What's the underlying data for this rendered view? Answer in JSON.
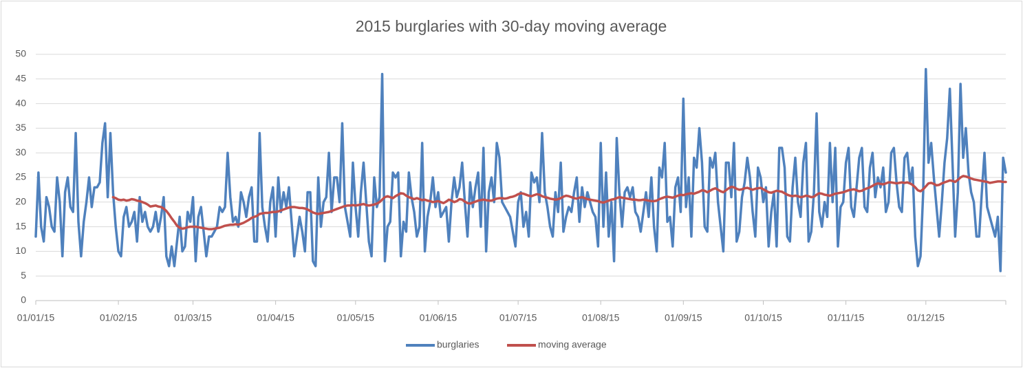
{
  "chart_data": {
    "type": "line",
    "title": "2015 burglaries with 30-day moving average",
    "categories": [
      "01/01/15",
      null,
      null,
      null,
      null,
      null,
      null,
      null,
      null,
      null,
      null,
      null,
      null,
      null,
      null,
      null,
      null,
      null,
      null,
      null,
      null,
      null,
      null,
      null,
      null,
      null,
      null,
      null,
      null,
      null,
      null,
      "01/02/15",
      null,
      null,
      null,
      null,
      null,
      null,
      null,
      null,
      null,
      null,
      null,
      null,
      null,
      null,
      null,
      null,
      null,
      null,
      null,
      null,
      null,
      null,
      null,
      null,
      null,
      null,
      null,
      "01/03/15",
      null,
      null,
      null,
      null,
      null,
      null,
      null,
      null,
      null,
      null,
      null,
      null,
      null,
      null,
      null,
      null,
      null,
      null,
      null,
      null,
      null,
      null,
      null,
      null,
      null,
      null,
      null,
      null,
      null,
      null,
      "01/04/15",
      null,
      null,
      null,
      null,
      null,
      null,
      null,
      null,
      null,
      null,
      null,
      null,
      null,
      null,
      null,
      null,
      null,
      null,
      null,
      null,
      null,
      null,
      null,
      null,
      null,
      null,
      null,
      null,
      null,
      "01/05/15",
      null,
      null,
      null,
      null,
      null,
      null,
      null,
      null,
      null,
      null,
      null,
      null,
      null,
      null,
      null,
      null,
      null,
      null,
      null,
      null,
      null,
      null,
      null,
      null,
      null,
      null,
      null,
      null,
      null,
      null,
      "01/06/15",
      null,
      null,
      null,
      null,
      null,
      null,
      null,
      null,
      null,
      null,
      null,
      null,
      null,
      null,
      null,
      null,
      null,
      null,
      null,
      null,
      null,
      null,
      null,
      null,
      null,
      null,
      null,
      null,
      null,
      "01/07/15",
      null,
      null,
      null,
      null,
      null,
      null,
      null,
      null,
      null,
      null,
      null,
      null,
      null,
      null,
      null,
      null,
      null,
      null,
      null,
      null,
      null,
      null,
      null,
      null,
      null,
      null,
      null,
      null,
      null,
      null,
      "01/08/15",
      null,
      null,
      null,
      null,
      null,
      null,
      null,
      null,
      null,
      null,
      null,
      null,
      null,
      null,
      null,
      null,
      null,
      null,
      null,
      null,
      null,
      null,
      null,
      null,
      null,
      null,
      null,
      null,
      null,
      null,
      "01/09/15",
      null,
      null,
      null,
      null,
      null,
      null,
      null,
      null,
      null,
      null,
      null,
      null,
      null,
      null,
      null,
      null,
      null,
      null,
      null,
      null,
      null,
      null,
      null,
      null,
      null,
      null,
      null,
      null,
      null,
      "01/10/15",
      null,
      null,
      null,
      null,
      null,
      null,
      null,
      null,
      null,
      null,
      null,
      null,
      null,
      null,
      null,
      null,
      null,
      null,
      null,
      null,
      null,
      null,
      null,
      null,
      null,
      null,
      null,
      null,
      null,
      null,
      "01/11/15",
      null,
      null,
      null,
      null,
      null,
      null,
      null,
      null,
      null,
      null,
      null,
      null,
      null,
      null,
      null,
      null,
      null,
      null,
      null,
      null,
      null,
      null,
      null,
      null,
      null,
      null,
      null,
      null,
      null,
      "01/12/15",
      null,
      null,
      null,
      null,
      null,
      null,
      null,
      null,
      null,
      null,
      null,
      null,
      null,
      null,
      null,
      null,
      null,
      null,
      null,
      null,
      null,
      null,
      null,
      null,
      null,
      null,
      null,
      null,
      null,
      null
    ],
    "series": [
      {
        "name": "burglaries",
        "color": "#4f81bd",
        "values": [
          13,
          26,
          15,
          12,
          21,
          19,
          15,
          14,
          25,
          20,
          9,
          22,
          25,
          19,
          18,
          34,
          16,
          9,
          16,
          20,
          25,
          19,
          23,
          23,
          24,
          32,
          36,
          21,
          34,
          22,
          15,
          10,
          9,
          17,
          19,
          15,
          16,
          18,
          12,
          21,
          16,
          18,
          15,
          14,
          15,
          18,
          14,
          17,
          21,
          9,
          7,
          11,
          7,
          12,
          17,
          10,
          11,
          18,
          16,
          21,
          8,
          17,
          19,
          14,
          9,
          13,
          13,
          14,
          15,
          19,
          18,
          19,
          30,
          21,
          16,
          17,
          15,
          22,
          20,
          17,
          21,
          23,
          12,
          12,
          34,
          19,
          15,
          12,
          20,
          23,
          13,
          25,
          18,
          22,
          19,
          23,
          16,
          9,
          13,
          17,
          14,
          10,
          22,
          22,
          8,
          7,
          25,
          15,
          20,
          21,
          30,
          18,
          25,
          25,
          20,
          36,
          19,
          16,
          13,
          28,
          19,
          13,
          22,
          28,
          20,
          12,
          9,
          25,
          19,
          21,
          46,
          8,
          15,
          16,
          26,
          25,
          26,
          9,
          16,
          14,
          26,
          21,
          18,
          13,
          15,
          32,
          10,
          17,
          20,
          25,
          19,
          22,
          17,
          18,
          19,
          12,
          20,
          25,
          21,
          23,
          28,
          20,
          13,
          24,
          19,
          23,
          26,
          15,
          31,
          10,
          22,
          25,
          20,
          32,
          29,
          20,
          19,
          18,
          17,
          14,
          11,
          20,
          22,
          15,
          18,
          13,
          26,
          24,
          25,
          20,
          34,
          22,
          19,
          15,
          13,
          22,
          18,
          28,
          14,
          17,
          19,
          18,
          22,
          25,
          16,
          23,
          19,
          22,
          20,
          18,
          17,
          11,
          32,
          15,
          26,
          13,
          20,
          8,
          33,
          22,
          15,
          22,
          23,
          21,
          23,
          18,
          17,
          14,
          18,
          22,
          17,
          25,
          15,
          10,
          27,
          25,
          32,
          16,
          17,
          11,
          23,
          25,
          18,
          41,
          19,
          25,
          13,
          29,
          27,
          35,
          28,
          15,
          14,
          29,
          27,
          30,
          20,
          15,
          10,
          28,
          28,
          21,
          32,
          12,
          14,
          21,
          24,
          29,
          25,
          18,
          13,
          27,
          25,
          20,
          23,
          11,
          18,
          22,
          11,
          31,
          31,
          27,
          13,
          12,
          23,
          29,
          20,
          17,
          28,
          32,
          12,
          14,
          22,
          38,
          18,
          15,
          20,
          17,
          32,
          20,
          31,
          11,
          19,
          20,
          28,
          31,
          19,
          17,
          23,
          29,
          31,
          19,
          18,
          27,
          30,
          21,
          25,
          23,
          27,
          18,
          20,
          30,
          31,
          24,
          19,
          18,
          29,
          30,
          24,
          27,
          13,
          7,
          9,
          22,
          47,
          28,
          32,
          25,
          19,
          13,
          20,
          28,
          33,
          43,
          28,
          13,
          22,
          44,
          29,
          35,
          26,
          22,
          20,
          13,
          13,
          22,
          30,
          19,
          17,
          15,
          13,
          17,
          6,
          29,
          26
        ]
      },
      {
        "name": "moving average",
        "color": "#c0504d",
        "values": [
          null,
          null,
          null,
          null,
          null,
          null,
          null,
          null,
          null,
          null,
          null,
          null,
          null,
          null,
          null,
          null,
          null,
          null,
          null,
          null,
          null,
          null,
          null,
          null,
          null,
          null,
          null,
          null,
          null,
          21,
          20.8,
          20.5,
          20.4,
          20.5,
          20.3,
          20.4,
          20.6,
          20.5,
          20.3,
          20.2,
          20.0,
          19.8,
          19.5,
          19.1,
          19.2,
          19.3,
          19.1,
          19.0,
          18.7,
          18.2,
          17.5,
          16.7,
          16.0,
          15.2,
          14.8,
          14.6,
          14.7,
          14.9,
          15.0,
          15.0,
          15.0,
          14.9,
          14.8,
          14.7,
          14.6,
          14.5,
          14.5,
          14.6,
          14.7,
          14.8,
          15.0,
          15.2,
          15.3,
          15.4,
          15.4,
          15.5,
          15.4,
          15.6,
          15.8,
          16.1,
          16.4,
          16.8,
          17.0,
          17.2,
          17.6,
          17.7,
          17.8,
          17.8,
          17.9,
          18.0,
          18.0,
          18.1,
          18.3,
          18.5,
          18.7,
          18.9,
          19.0,
          19.0,
          18.9,
          18.8,
          18.8,
          18.7,
          18.5,
          18.2,
          17.9,
          17.7,
          17.6,
          17.7,
          17.8,
          17.9,
          18.0,
          18.2,
          18.4,
          18.6,
          18.8,
          19.0,
          19.2,
          19.3,
          19.3,
          19.4,
          19.3,
          19.4,
          19.5,
          19.6,
          19.4,
          19.3,
          19.4,
          19.5,
          19.7,
          20.0,
          20.5,
          21.0,
          21.2,
          21.0,
          20.8,
          21.2,
          21.5,
          21.8,
          21.7,
          21.3,
          21.0,
          20.8,
          20.6,
          20.8,
          20.6,
          20.4,
          20.5,
          20.3,
          20.2,
          20.0,
          20.1,
          20.2,
          20.0,
          19.8,
          20.1,
          20.5,
          20.3,
          20.0,
          20.2,
          20.6,
          20.5,
          20.1,
          19.8,
          19.7,
          19.9,
          20.1,
          20.3,
          20.4,
          20.5,
          20.4,
          20.3,
          20.3,
          20.5,
          20.7,
          20.8,
          20.8,
          20.7,
          20.8,
          21.0,
          21.1,
          21.3,
          21.6,
          21.8,
          21.7,
          21.5,
          21.3,
          21.2,
          21.4,
          21.6,
          21.5,
          21.2,
          21.0,
          20.9,
          20.7,
          20.6,
          20.5,
          20.6,
          20.8,
          21.1,
          21.3,
          21.2,
          21.0,
          20.8,
          20.7,
          20.9,
          21.0,
          20.8,
          20.6,
          20.5,
          20.4,
          20.3,
          20.2,
          20.0,
          19.9,
          20.1,
          20.3,
          20.5,
          20.6,
          20.8,
          21.0,
          20.9,
          20.8,
          20.7,
          20.6,
          20.5,
          20.5,
          20.4,
          20.4,
          20.5,
          20.4,
          20.3,
          20.2,
          20.2,
          20.3,
          20.6,
          20.8,
          21.0,
          21.1,
          21.0,
          20.9,
          21.1,
          21.3,
          21.5,
          21.4,
          21.6,
          21.7,
          21.8,
          21.7,
          21.9,
          22.1,
          22.4,
          22.3,
          22.0,
          22.3,
          22.6,
          22.8,
          22.5,
          22.2,
          22.0,
          22.4,
          22.8,
          23.1,
          23.0,
          22.7,
          22.5,
          22.6,
          22.8,
          22.9,
          22.7,
          22.5,
          22.7,
          22.8,
          22.9,
          22.6,
          22.3,
          22.0,
          21.9,
          22.1,
          22.3,
          22.2,
          22.1,
          21.8,
          21.5,
          21.3,
          21.2,
          21.3,
          21.2,
          21.0,
          21.1,
          21.3,
          21.2,
          21.0,
          21.1,
          21.5,
          21.8,
          21.7,
          21.5,
          21.4,
          21.3,
          21.5,
          21.7,
          21.8,
          21.9,
          22.0,
          22.2,
          22.4,
          22.5,
          22.6,
          22.4,
          22.2,
          22.3,
          22.6,
          22.8,
          23.0,
          23.3,
          23.6,
          23.8,
          23.7,
          23.6,
          23.8,
          24.0,
          24.0,
          23.9,
          23.8,
          23.9,
          24.0,
          23.9,
          24.0,
          23.8,
          23.5,
          23.0,
          22.4,
          22.2,
          22.6,
          23.2,
          23.8,
          23.9,
          23.7,
          23.4,
          23.5,
          23.8,
          24.0,
          24.2,
          24.4,
          24.3,
          24.1,
          24.5,
          25.0,
          25.3,
          25.2,
          25.0,
          24.8,
          24.6,
          24.5,
          24.4,
          24.3,
          24.2,
          24.1,
          23.9,
          24.0,
          24.1,
          24.2,
          24.2,
          24.1,
          24.1
        ]
      }
    ],
    "ylim": [
      0,
      50
    ],
    "yticks": [
      0,
      5,
      10,
      15,
      20,
      25,
      30,
      35,
      40,
      45,
      50
    ],
    "grid": true,
    "legend": "bottom"
  }
}
